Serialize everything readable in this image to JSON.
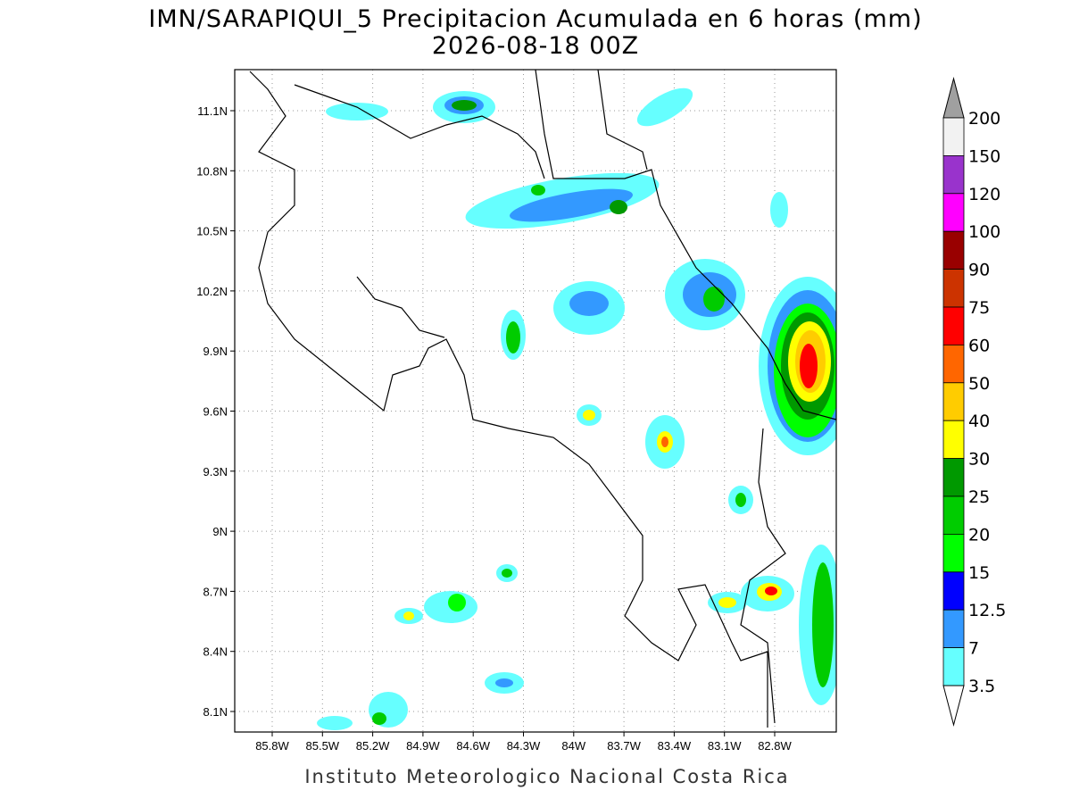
{
  "header": {
    "title": "IMN/SARAPIQUI_5 Precipitacion Acumulada en 6 horas (mm)",
    "subtitle": "2026-08-18 00Z"
  },
  "map": {
    "lat_ticks": [
      "11.1N",
      "10.8N",
      "10.5N",
      "10.2N",
      "9.9N",
      "9.6N",
      "9.3N",
      "9N",
      "8.7N",
      "8.4N",
      "8.1N"
    ],
    "lon_ticks": [
      "85.8W",
      "85.5W",
      "85.2W",
      "84.9W",
      "84.6W",
      "84.3W",
      "84W",
      "83.7W",
      "83.4W",
      "83.1W",
      "82.8W"
    ]
  },
  "colorbar": {
    "labels": [
      "200",
      "150",
      "120",
      "100",
      "90",
      "75",
      "60",
      "50",
      "40",
      "30",
      "25",
      "20",
      "15",
      "12.5",
      "7",
      "3.5"
    ],
    "colors": [
      "#a0a0a0",
      "#f2f2f2",
      "#9933cc",
      "#ff00ff",
      "#990000",
      "#cc3300",
      "#ff0000",
      "#ff6600",
      "#ffcc00",
      "#ffff00",
      "#009900",
      "#00cc00",
      "#00ff00",
      "#0000ff",
      "#3399ff",
      "#66ffff",
      "#ffffff"
    ]
  },
  "footer": "Instituto Meteorologico Nacional Costa Rica"
}
